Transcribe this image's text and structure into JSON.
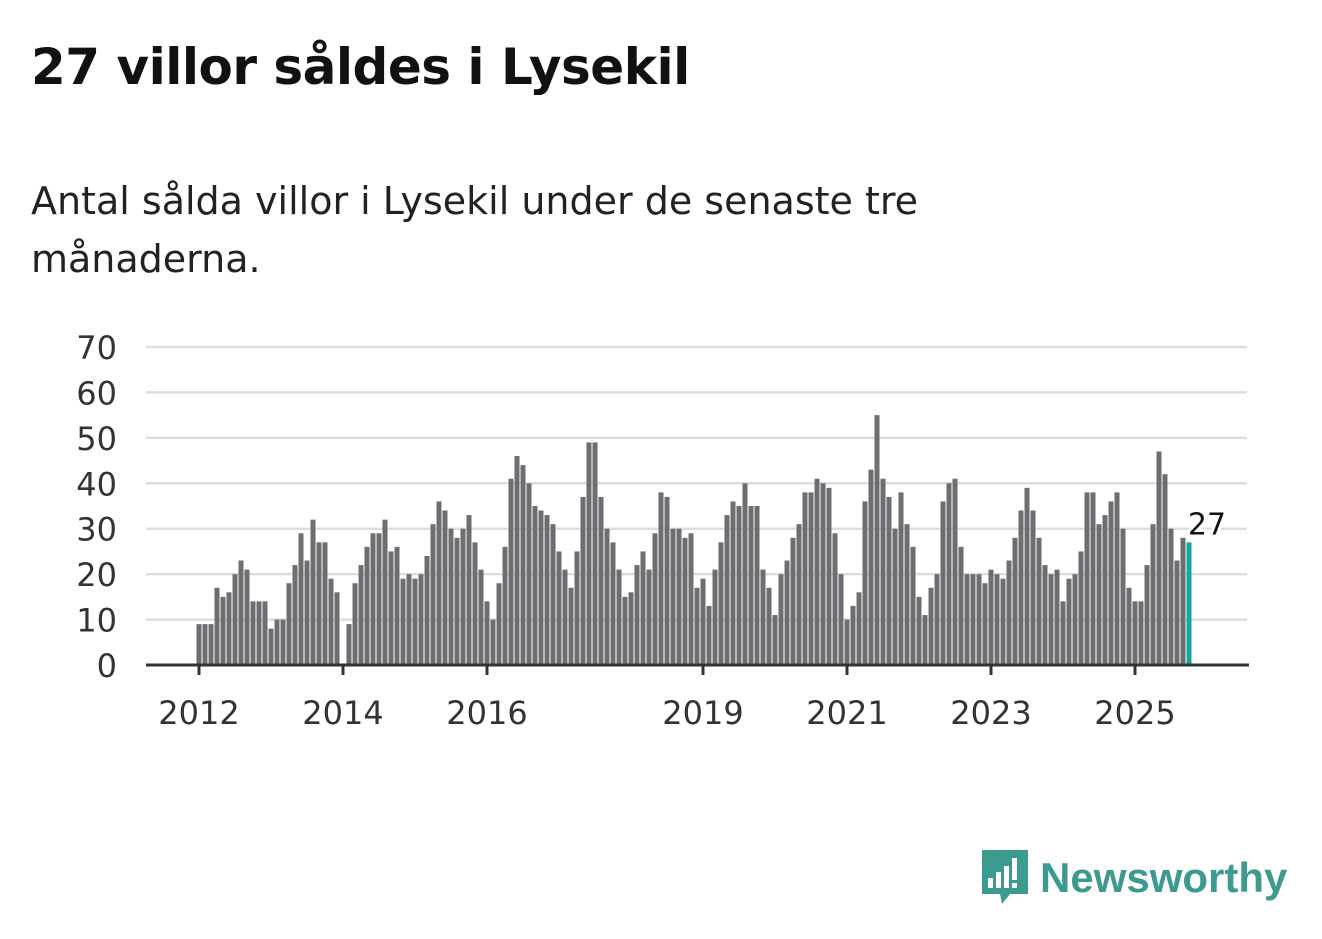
{
  "title": "27 villor såldes i Lysekil",
  "subtitle": "Antal sålda villor i Lysekil under de senaste tre månaderna.",
  "brand": {
    "name": "Newsworthy",
    "color": "#3c9a8e"
  },
  "colors": {
    "bar": "#6e6d72",
    "highlight": "#13a89e",
    "grid": "#dddddd",
    "axis": "#333333"
  },
  "chart_data": {
    "type": "bar",
    "title": "27 villor såldes i Lysekil",
    "xlabel": "",
    "ylabel": "",
    "ylim": [
      0,
      70
    ],
    "yticks": [
      0,
      10,
      20,
      30,
      40,
      50,
      60,
      70
    ],
    "grid": true,
    "start": "2012-01",
    "frequency": "monthly",
    "xtick_labels": [
      {
        "label": "2012",
        "index": 0
      },
      {
        "label": "2014",
        "index": 24
      },
      {
        "label": "2016",
        "index": 48
      },
      {
        "label": "2019",
        "index": 84
      },
      {
        "label": "2021",
        "index": 108
      },
      {
        "label": "2023",
        "index": 132
      },
      {
        "label": "2025",
        "index": 156
      }
    ],
    "values": [
      9,
      9,
      9,
      17,
      15,
      16,
      20,
      23,
      21,
      14,
      14,
      14,
      8,
      10,
      10,
      18,
      22,
      29,
      23,
      32,
      27,
      27,
      19,
      16,
      0,
      9,
      18,
      22,
      26,
      29,
      29,
      32,
      25,
      26,
      19,
      20,
      19,
      20,
      24,
      31,
      36,
      34,
      30,
      28,
      30,
      33,
      27,
      21,
      14,
      10,
      18,
      26,
      41,
      46,
      44,
      40,
      35,
      34,
      33,
      31,
      25,
      21,
      17,
      25,
      37,
      49,
      49,
      37,
      30,
      27,
      21,
      15,
      16,
      22,
      25,
      21,
      29,
      38,
      37,
      30,
      30,
      28,
      29,
      17,
      19,
      13,
      21,
      27,
      33,
      36,
      35,
      40,
      35,
      35,
      21,
      17,
      11,
      20,
      23,
      28,
      31,
      38,
      38,
      41,
      40,
      39,
      29,
      20,
      10,
      13,
      16,
      36,
      43,
      55,
      41,
      37,
      30,
      38,
      31,
      26,
      15,
      11,
      17,
      20,
      36,
      40,
      41,
      26,
      20,
      20,
      20,
      18,
      21,
      20,
      19,
      23,
      28,
      34,
      39,
      34,
      28,
      22,
      20,
      21,
      14,
      19,
      20,
      25,
      38,
      38,
      31,
      33,
      36,
      38,
      30,
      17,
      14,
      14,
      22,
      31,
      47,
      42,
      30,
      23,
      28,
      27
    ],
    "annotation": {
      "label": "27",
      "index": 165
    }
  }
}
